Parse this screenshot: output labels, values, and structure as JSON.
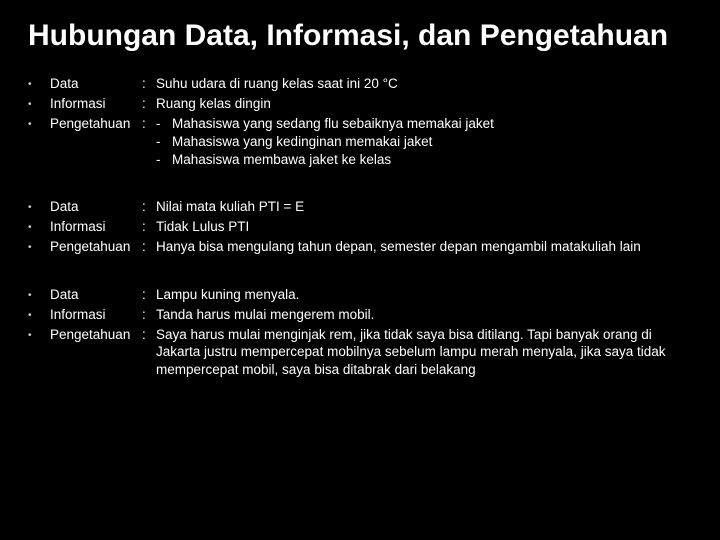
{
  "title": "Hubungan Data, Informasi, dan Pengetahuan",
  "labels": {
    "data": "Data",
    "informasi": "Informasi",
    "pengetahuan": "Pengetahuan"
  },
  "g1": {
    "data": "Suhu udara di ruang kelas saat ini 20 °C",
    "informasi": "Ruang kelas dingin",
    "p1": "Mahasiswa yang sedang flu sebaiknya memakai jaket",
    "p2": "Mahasiswa yang kedinginan memakai jaket",
    "p3": "Mahasiswa membawa jaket ke kelas"
  },
  "g2": {
    "data": "Nilai mata kuliah PTI = E",
    "informasi": "Tidak Lulus PTI",
    "pengetahuan": "Hanya bisa mengulang tahun depan, semester depan mengambil matakuliah lain"
  },
  "g3": {
    "data": "Lampu kuning menyala.",
    "informasi": "Tanda harus mulai mengerem mobil.",
    "pengetahuan": "Saya harus mulai menginjak rem, jika tidak saya bisa ditilang. Tapi banyak orang di Jakarta justru mempercepat mobilnya sebelum lampu merah menyala, jika saya tidak mempercepat mobil, saya bisa ditabrak dari belakang"
  }
}
